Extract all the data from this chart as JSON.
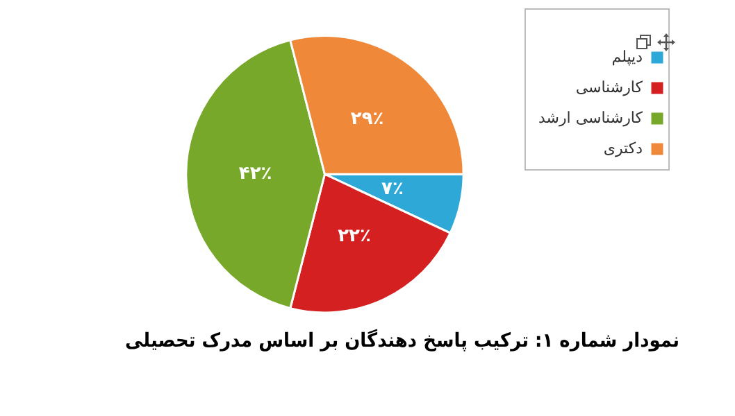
{
  "chart_data": {
    "type": "pie",
    "title": "نمودار شماره ۱: ترکیب پاسخ دهندگان بر اساس مدرک تحصیلی",
    "categories": [
      "دیپلم",
      "کارشناسی",
      "کارشناسی ارشد",
      "دکتری"
    ],
    "values": [
      7,
      22,
      42,
      29
    ],
    "colors": [
      "#2ea8d6",
      "#d42020",
      "#78a82a",
      "#f0883a"
    ],
    "value_labels": [
      "۷٪",
      "۲۲٪",
      "۴۲٪",
      "۲۹٪"
    ],
    "legend": "top right"
  }
}
